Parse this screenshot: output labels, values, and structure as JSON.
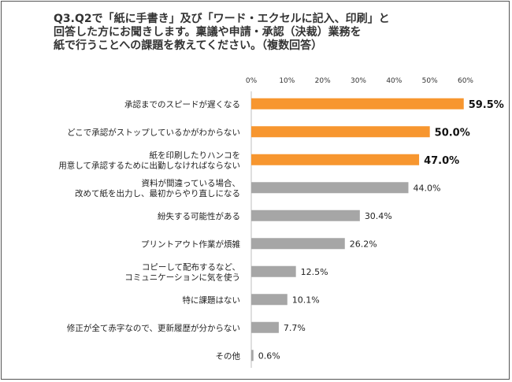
{
  "chart_data": {
    "type": "bar",
    "orientation": "horizontal",
    "title": "Q3.Q2で「紙に手書き」及び「ワード・エクセルに記入、印刷」と\n回答した方にお聞きします。稟議や申請・承認（決裁）業務を\n紙で行うことへの課題を教えてください。（複数回答）",
    "x_ticks": [
      "0%",
      "10%",
      "20%",
      "30%",
      "40%",
      "50%",
      "60%"
    ],
    "xlim": [
      0,
      60
    ],
    "categories": [
      "承認までのスピードが遅くなる",
      "どこで承認がストップしているかがわからない",
      "紙を印刷したりハンコを\n用意して承認するために出勤しなければならない",
      "資料が間違っている場合、\n改めて紙を出力し、最初からやり直しになる",
      "紛失する可能性がある",
      "プリントアウト作業が煩雑",
      "コピーして配布するなど、\nコミュニケーションに気を使う",
      "特に課題はない",
      "修正が全て赤字なので、更新履歴が分からない",
      "その他"
    ],
    "values": [
      59.5,
      50.0,
      47.0,
      44.0,
      30.4,
      26.2,
      12.5,
      10.1,
      7.7,
      0.6
    ],
    "value_labels": [
      "59.5%",
      "50.0%",
      "47.0%",
      "44.0%",
      "30.4%",
      "26.2%",
      "12.5%",
      "10.1%",
      "7.7%",
      "0.6%"
    ],
    "highlight_count": 3,
    "colors": {
      "highlight": "#F7962F",
      "normal": "#A6A6A6",
      "axis": "#BFBFBF"
    },
    "grid": false,
    "legend": "none"
  }
}
